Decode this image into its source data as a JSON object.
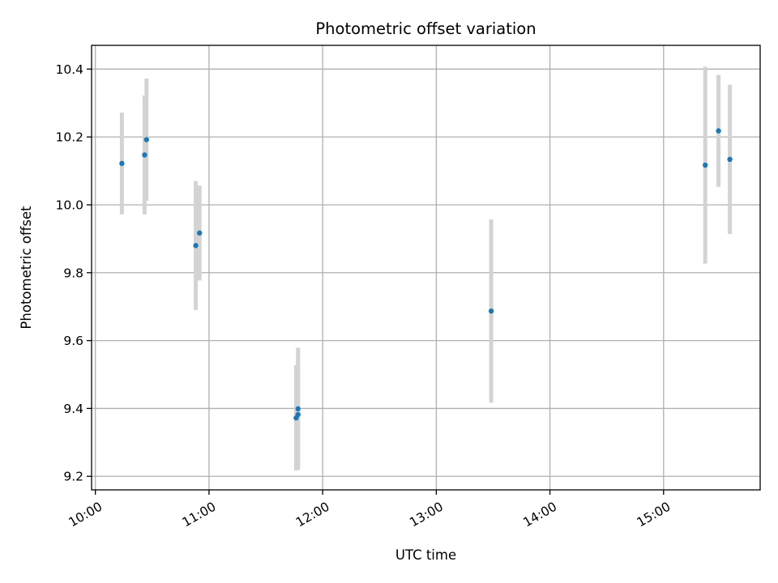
{
  "chart_data": {
    "type": "scatter",
    "title": "Photometric offset variation",
    "xlabel": "UTC time",
    "ylabel": "Photometric offset",
    "x_ticks": [
      "10:00",
      "11:00",
      "12:00",
      "13:00",
      "14:00",
      "15:00"
    ],
    "y_ticks": [
      "9.2",
      "9.4",
      "9.6",
      "9.8",
      "10.0",
      "10.2",
      "10.4"
    ],
    "xlim": [
      "09:58",
      "15:51"
    ],
    "ylim": [
      9.16,
      10.47
    ],
    "grid": true,
    "point_color": "#1f77b4",
    "errorbar_color": "#d3d3d3",
    "points": [
      {
        "x": "10:14",
        "y": 10.122,
        "yerr": 0.15
      },
      {
        "x": "10:26",
        "y": 10.147,
        "yerr": 0.175
      },
      {
        "x": "10:27",
        "y": 10.192,
        "yerr": 0.18
      },
      {
        "x": "10:53",
        "y": 9.88,
        "yerr": 0.19
      },
      {
        "x": "10:55",
        "y": 9.917,
        "yerr": 0.14
      },
      {
        "x": "11:46",
        "y": 9.372,
        "yerr": 0.155
      },
      {
        "x": "11:47",
        "y": 9.382,
        "yerr": 0.16
      },
      {
        "x": "11:47",
        "y": 9.399,
        "yerr": 0.18
      },
      {
        "x": "13:29",
        "y": 9.687,
        "yerr": 0.27
      },
      {
        "x": "15:22",
        "y": 10.117,
        "yerr": 0.29
      },
      {
        "x": "15:29",
        "y": 10.218,
        "yerr": 0.165
      },
      {
        "x": "15:35",
        "y": 10.134,
        "yerr": 0.22
      }
    ]
  }
}
